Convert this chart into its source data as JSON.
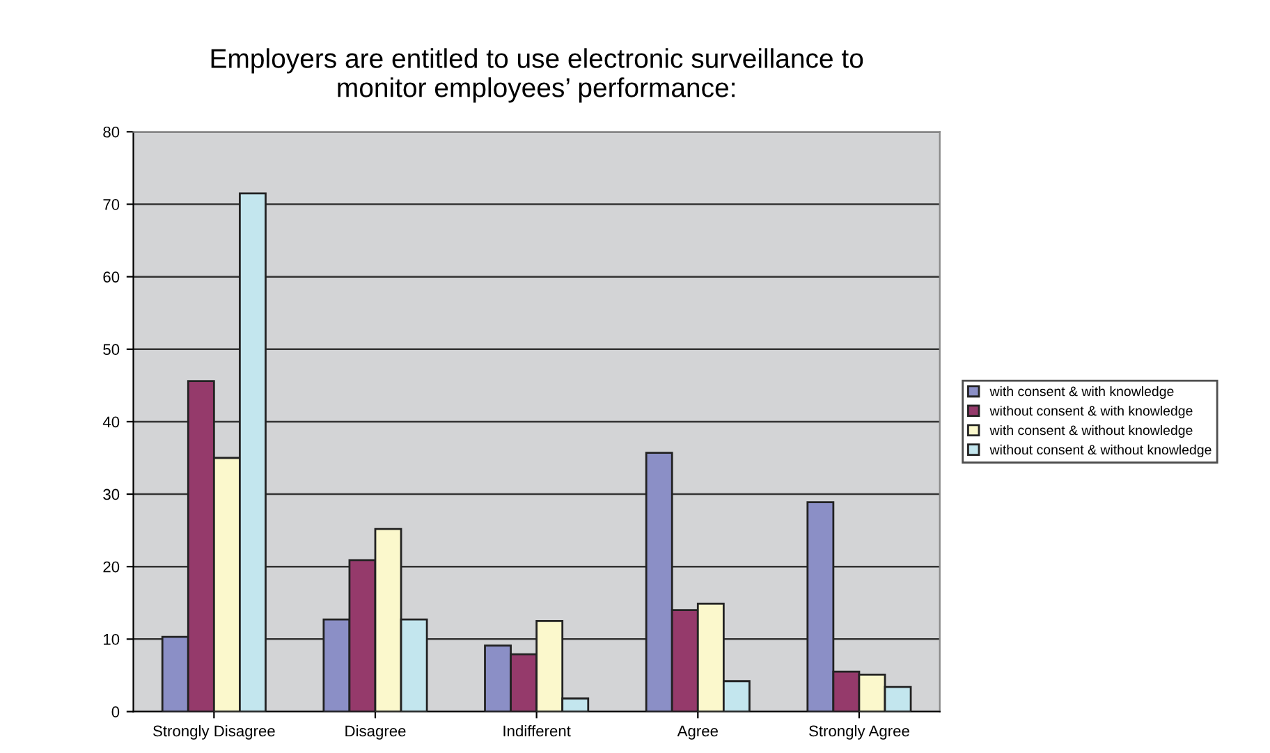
{
  "chart_data": {
    "type": "bar",
    "title": "Employers are entitled to use electronic surveillance to\nmonitor employees’ performance:",
    "categories": [
      "Strongly Disagree",
      "Disagree",
      "Indifferent",
      "Agree",
      "Strongly Agree"
    ],
    "series": [
      {
        "name": "with consent & with knowledge",
        "color": "#8b8fc6",
        "values": [
          10.3,
          12.7,
          9.1,
          35.7,
          28.9
        ]
      },
      {
        "name": "without consent & with knowledge",
        "color": "#953a6b",
        "values": [
          45.6,
          20.9,
          7.9,
          14.0,
          5.5
        ]
      },
      {
        "name": "with consent & without knowledge",
        "color": "#fbf8cc",
        "values": [
          35,
          25.2,
          12.5,
          14.9,
          5.1
        ]
      },
      {
        "name": "without consent & without knowledge",
        "color": "#c3e6ee",
        "values": [
          71.5,
          12.7,
          1.8,
          4.2,
          3.4
        ]
      }
    ],
    "ylim": [
      0,
      80
    ],
    "yticks": [
      0,
      10,
      20,
      30,
      40,
      50,
      60,
      70,
      80
    ],
    "grid": "y",
    "legend": "right"
  }
}
